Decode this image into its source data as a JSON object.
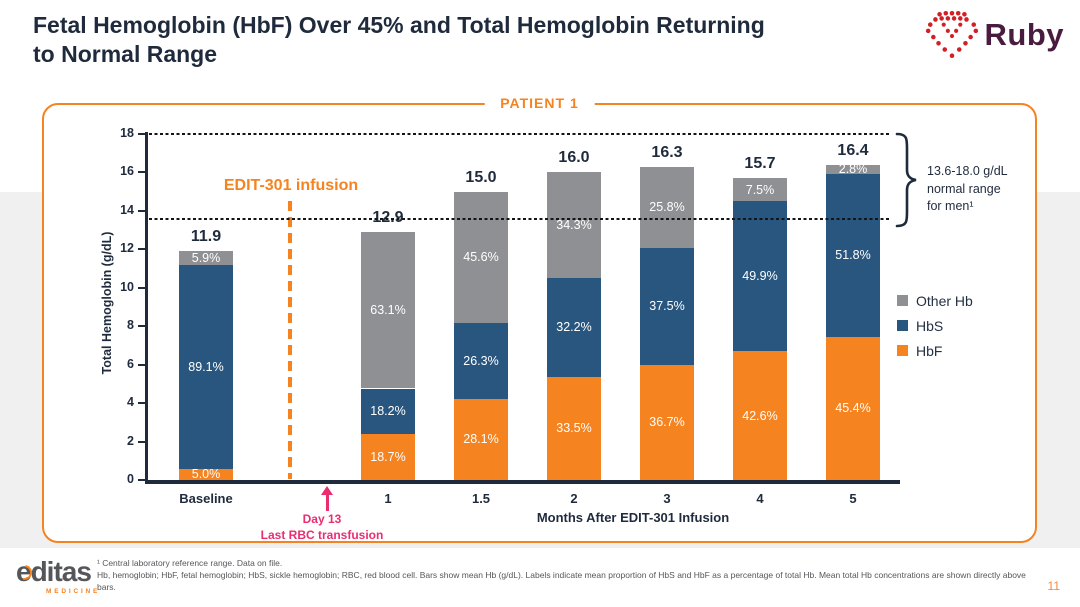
{
  "header": {
    "title": "Fetal Hemoglobin (HbF) Over 45% and Total Hemoglobin Returning to Normal Range",
    "logo_text": "Ruby"
  },
  "panel": {
    "label": "PATIENT 1"
  },
  "chart_data": {
    "type": "bar",
    "stacked": true,
    "title": "PATIENT 1",
    "categories": [
      "Baseline",
      "1",
      "1.5",
      "2",
      "3",
      "4",
      "5"
    ],
    "totals": [
      11.9,
      12.9,
      15.0,
      16.0,
      16.3,
      15.7,
      16.4
    ],
    "series": [
      {
        "name": "HbF",
        "color": "#f5831f",
        "pct": [
          5.0,
          18.7,
          28.1,
          33.5,
          36.7,
          42.6,
          45.4
        ]
      },
      {
        "name": "HbS",
        "color": "#29567f",
        "pct": [
          89.1,
          18.2,
          26.3,
          32.2,
          37.5,
          49.9,
          51.8
        ]
      },
      {
        "name": "Other Hb",
        "color": "#8f9093",
        "pct": [
          5.9,
          63.1,
          45.6,
          34.3,
          25.8,
          7.5,
          2.8
        ]
      }
    ],
    "ylabel": "Total Hemoglobin (g/dL)",
    "xlabel": "Months After EDIT-301 Infusion",
    "ylim": [
      0,
      18
    ],
    "ytick_step": 2,
    "grid": false,
    "reference_lines": [
      18.0,
      13.6
    ],
    "legend_position": "right",
    "legend_order": [
      "Other Hb",
      "HbS",
      "HbF"
    ],
    "annotations": {
      "infusion": "EDIT-301 infusion",
      "day13": [
        "Day 13",
        "Last RBC transfusion"
      ],
      "range": [
        "13.6-18.0  g/dL",
        "normal range",
        "for men¹"
      ]
    }
  },
  "colors": {
    "accent_orange": "#f5831f",
    "annotation_pink": "#eb2d70",
    "text_navy": "#1f2b3d",
    "ruby_red": "#d21f26"
  },
  "footnote": {
    "lines": [
      "¹ Central laboratory reference range. Data on file.",
      "Hb, hemoglobin; HbF, fetal hemoglobin; HbS, sickle hemoglobin; RBC, red blood cell. Bars show mean Hb (g/dL). Labels indicate mean proportion of HbS and HbF as a percentage of total Hb. Mean total Hb concentrations are shown directly above bars."
    ]
  },
  "footer": {
    "logo_word": "editas",
    "logo_sub": "MEDICINE",
    "page_number": "11"
  }
}
